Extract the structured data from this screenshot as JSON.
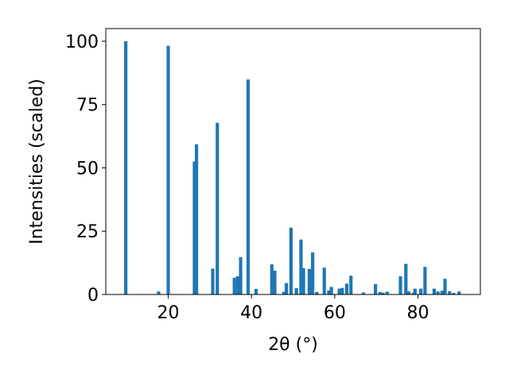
{
  "chart_data": {
    "type": "bar",
    "xlabel": "2θ (°)",
    "ylabel": "Intensities (scaled)",
    "xlim": [
      5,
      95
    ],
    "ylim": [
      0,
      105
    ],
    "x_ticks": [
      20,
      40,
      60,
      80
    ],
    "x_tick_labels": [
      "20",
      "40",
      "60",
      "80"
    ],
    "y_ticks": [
      0,
      25,
      50,
      75,
      100
    ],
    "y_tick_labels": [
      "0",
      "25",
      "50",
      "75",
      "100"
    ],
    "bar_width": 0.8,
    "bar_color": "#1f77b4",
    "grid": false,
    "x": [
      9.8,
      17.7,
      20.0,
      26.3,
      26.8,
      30.7,
      31.8,
      35.9,
      36.7,
      37.4,
      39.2,
      41.1,
      44.9,
      45.6,
      47.8,
      48.4,
      49.5,
      50.8,
      51.9,
      52.5,
      53.9,
      54.7,
      55.7,
      57.5,
      58.6,
      59.2,
      61.1,
      61.8,
      62.9,
      63.9,
      66.9,
      69.8,
      70.9,
      71.6,
      72.6,
      75.8,
      77.1,
      77.8,
      78.9,
      79.3,
      80.7,
      81.7,
      83.9,
      84.8,
      85.8,
      86.5,
      87.6,
      88.6,
      89.9
    ],
    "values": [
      100,
      1.2,
      98.2,
      52.5,
      59.3,
      10.2,
      67.8,
      6.6,
      7.2,
      14.7,
      84.9,
      2.2,
      11.9,
      9.4,
      1.1,
      4.5,
      26.4,
      2.5,
      21.7,
      10.4,
      10.1,
      16.6,
      1.0,
      10.6,
      1.6,
      3.0,
      2.3,
      2.6,
      4.3,
      7.4,
      0.8,
      4.1,
      1.0,
      0.7,
      1.1,
      7.2,
      12.1,
      1.2,
      0.7,
      2.3,
      2.3,
      10.9,
      2.3,
      1.2,
      1.5,
      6.2,
      1.3,
      0.6,
      1.2
    ]
  }
}
